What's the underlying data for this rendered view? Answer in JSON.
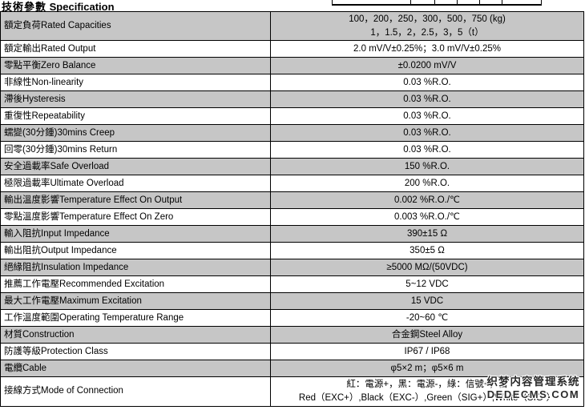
{
  "page": {
    "title_zh": "技術參數",
    "title_en": "Specification"
  },
  "watermark": {
    "line1": "织梦内容管理系统",
    "line2": "DEDECMS.COM"
  },
  "table": {
    "rows": [
      {
        "label": "額定負荷Rated Capacities",
        "value_lines": [
          "100，200，250，300，500，750 (kg)",
          "1，1.5，2，2.5，3，5（t）"
        ]
      },
      {
        "label": "額定輸出Rated Output",
        "value_lines": [
          "2.0 mV/V±0.25%；3.0 mV/V±0.25%"
        ]
      },
      {
        "label": "零點平衡Zero Balance",
        "value_lines": [
          "±0.0200 mV/V"
        ]
      },
      {
        "label": "非線性Non-linearity",
        "value_lines": [
          "0.03 %R.O."
        ]
      },
      {
        "label": "滯後Hysteresis",
        "value_lines": [
          "0.03 %R.O."
        ]
      },
      {
        "label": "重復性Repeatability",
        "value_lines": [
          "0.03 %R.O."
        ]
      },
      {
        "label": "蠕變(30分鍾)30mins Creep",
        "value_lines": [
          "0.03 %R.O."
        ]
      },
      {
        "label": "回零(30分鍾)30mins Return",
        "value_lines": [
          "0.03 %R.O."
        ]
      },
      {
        "label": "安全過載率Safe Overload",
        "value_lines": [
          "150 %R.O."
        ]
      },
      {
        "label": "極限過載率Ultimate Overload",
        "value_lines": [
          "200 %R.O."
        ]
      },
      {
        "label": "輸出溫度影響Temperature Effect On Output",
        "value_lines": [
          "0.002 %R.O./℃"
        ]
      },
      {
        "label": "零點溫度影響Temperature Effect On Zero",
        "value_lines": [
          "0.003 %R.O./℃"
        ]
      },
      {
        "label": "輸入阻抗Input Impedance",
        "value_lines": [
          "390±15 Ω"
        ]
      },
      {
        "label": "輸出阻抗Output Impedance",
        "value_lines": [
          "350±5 Ω"
        ]
      },
      {
        "label": "絕緣阻抗Insulation Impedance",
        "value_lines": [
          "≥5000 MΩ/(50VDC)"
        ]
      },
      {
        "label": "推薦工作電壓Recommended Excitation",
        "value_lines": [
          "5~12 VDC"
        ]
      },
      {
        "label": "最大工作電壓Maximum Excitation",
        "value_lines": [
          "15 VDC"
        ]
      },
      {
        "label": "工作溫度範圍Operating Temperature Range",
        "value_lines": [
          "-20~60 ℃"
        ]
      },
      {
        "label": "材質Construction",
        "value_lines": [
          "合金鋼Steel Alloy"
        ]
      },
      {
        "label": "防護等級Protection Class",
        "value_lines": [
          "IP67 / IP68"
        ]
      },
      {
        "label": "電纜Cable",
        "value_lines": [
          "φ5×2 m；φ5×6 m"
        ]
      },
      {
        "label": "接線方式Mode of Connection",
        "value_lines": [
          "紅：電源+，黑：電源-，綠：信號+，白",
          "Red（EXC+）,Black（EXC-）,Green（SIG+）,White（SIG-）"
        ]
      }
    ]
  }
}
